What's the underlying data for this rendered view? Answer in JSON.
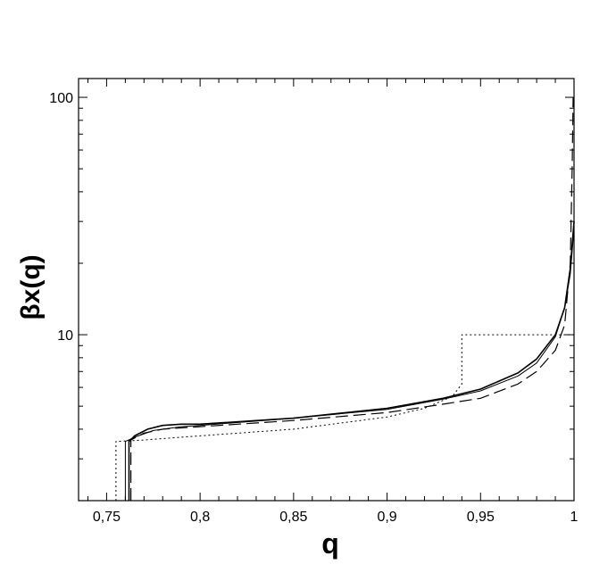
{
  "chart_data": {
    "type": "line",
    "title": "",
    "xlabel": "q",
    "ylabel": "βx(q)",
    "xlim": [
      0.735,
      1.0
    ],
    "ylim": [
      2,
      120
    ],
    "yscale": "log",
    "grid": false,
    "legend": "none",
    "x_ticks": [
      {
        "value": 0.75,
        "label": "0,75"
      },
      {
        "value": 0.8,
        "label": "0,8"
      },
      {
        "value": 0.85,
        "label": "0,85"
      },
      {
        "value": 0.9,
        "label": "0,9"
      },
      {
        "value": 0.95,
        "label": "0,95"
      },
      {
        "value": 1.0,
        "label": "1"
      }
    ],
    "y_ticks": [
      {
        "value": 10,
        "label": "10"
      },
      {
        "value": 100,
        "label": "100"
      }
    ],
    "series": [
      {
        "style": "solid",
        "points": [
          [
            0.762,
            2
          ],
          [
            0.762,
            3.55
          ],
          [
            0.765,
            3.75
          ],
          [
            0.772,
            4.0
          ],
          [
            0.78,
            4.15
          ],
          [
            0.79,
            4.2
          ],
          [
            0.8,
            4.2
          ],
          [
            0.85,
            4.45
          ],
          [
            0.9,
            4.9
          ],
          [
            0.93,
            5.4
          ],
          [
            0.95,
            5.9
          ],
          [
            0.97,
            6.9
          ],
          [
            0.98,
            7.9
          ],
          [
            0.99,
            10
          ],
          [
            0.995,
            13
          ],
          [
            0.998,
            19
          ],
          [
            1.0,
            30
          ]
        ]
      },
      {
        "style": "solid-thin",
        "points": [
          [
            0.76,
            2
          ],
          [
            0.76,
            3.55
          ],
          [
            0.765,
            3.7
          ],
          [
            0.775,
            3.95
          ],
          [
            0.79,
            4.1
          ],
          [
            0.8,
            4.15
          ],
          [
            0.85,
            4.45
          ],
          [
            0.9,
            4.85
          ],
          [
            0.93,
            5.35
          ],
          [
            0.95,
            5.8
          ],
          [
            0.97,
            6.7
          ],
          [
            0.98,
            7.6
          ],
          [
            0.99,
            9.8
          ],
          [
            0.995,
            13
          ],
          [
            0.998,
            18
          ],
          [
            1.0,
            28
          ]
        ]
      },
      {
        "style": "dashed",
        "points": [
          [
            0.763,
            2
          ],
          [
            0.763,
            3.6
          ],
          [
            0.77,
            3.85
          ],
          [
            0.78,
            4.0
          ],
          [
            0.8,
            4.1
          ],
          [
            0.85,
            4.35
          ],
          [
            0.9,
            4.7
          ],
          [
            0.93,
            5.1
          ],
          [
            0.95,
            5.4
          ],
          [
            0.97,
            6.2
          ],
          [
            0.98,
            7.0
          ],
          [
            0.99,
            8.6
          ],
          [
            0.995,
            11
          ],
          [
            0.998,
            20
          ],
          [
            0.999,
            50
          ],
          [
            0.9995,
            100
          ]
        ]
      },
      {
        "style": "dotted",
        "points": [
          [
            0.755,
            2
          ],
          [
            0.755,
            3.55
          ],
          [
            0.77,
            3.6
          ],
          [
            0.79,
            3.7
          ],
          [
            0.8,
            3.75
          ],
          [
            0.85,
            4.0
          ],
          [
            0.9,
            4.5
          ],
          [
            0.92,
            4.9
          ],
          [
            0.935,
            5.5
          ],
          [
            0.94,
            6.2
          ],
          [
            0.94,
            10
          ],
          [
            1.0,
            10
          ]
        ]
      }
    ]
  }
}
